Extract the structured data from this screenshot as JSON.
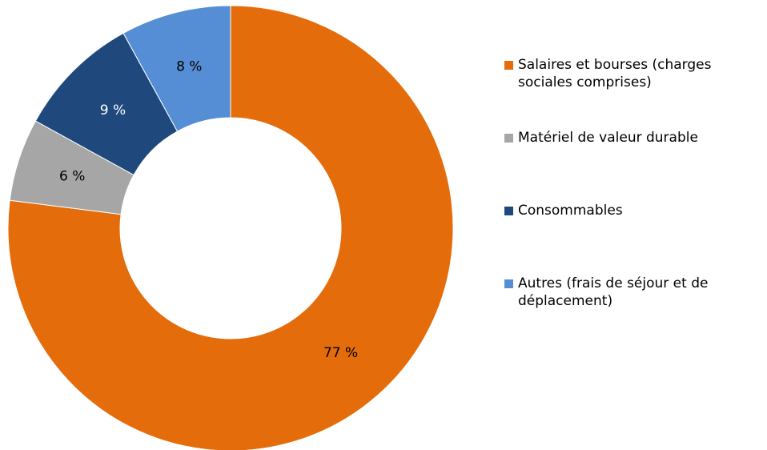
{
  "chart_data": {
    "type": "donut",
    "categories": [
      "Salaires et bourses (charges sociales comprises)",
      "Matériel de valeur durable",
      "Consommables",
      "Autres (frais de séjour et de déplacement)"
    ],
    "values": [
      77,
      6,
      9,
      8
    ],
    "value_labels": [
      "77 %",
      "6 %",
      "9 %",
      "8 %"
    ],
    "colors": [
      "#e46c0a",
      "#a6a6a6",
      "#1f497d",
      "#558ed5"
    ],
    "legend": "right"
  }
}
